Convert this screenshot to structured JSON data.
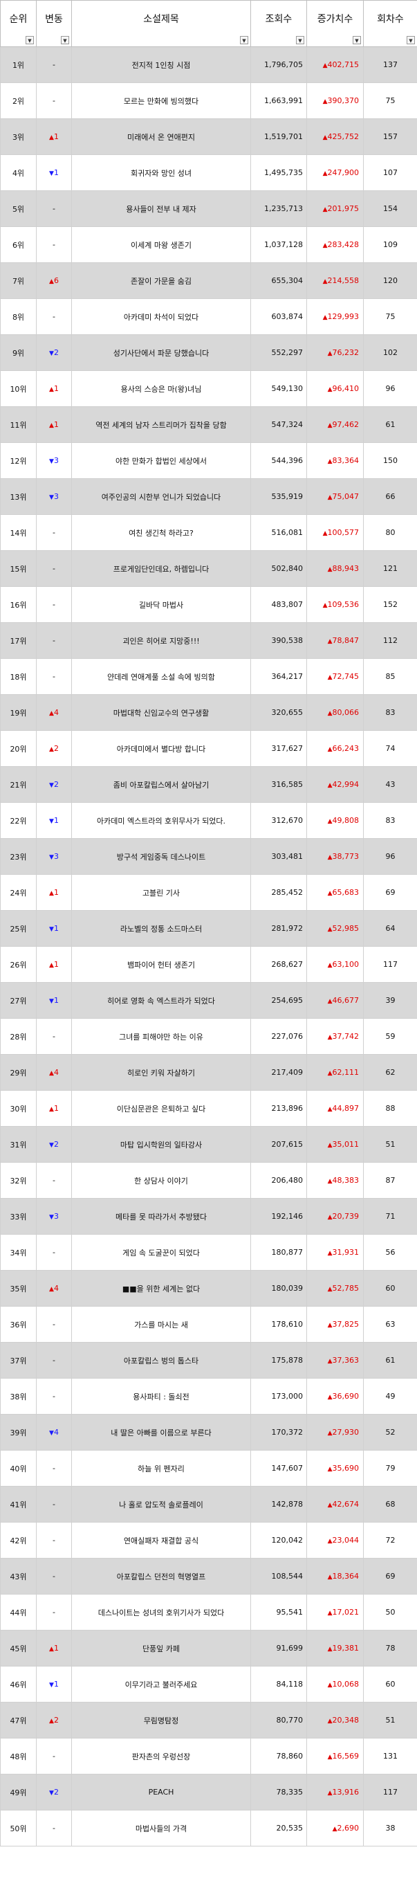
{
  "headers": {
    "rank": "순위",
    "change": "변동",
    "title": "소설제목",
    "views": "조회수",
    "increase": "증가치수",
    "episodes": "회차수",
    "filter_icon": "dropdown-filter-icon"
  },
  "colors": {
    "up": "#e00000",
    "down": "#1a1aff",
    "stripe": "#d8d8d8"
  },
  "rows": [
    {
      "rank": "1위",
      "dir": "none",
      "chg": "-",
      "title": "전지적 1인칭 시점",
      "views": "1,796,705",
      "inc": "402,715",
      "ep": "137"
    },
    {
      "rank": "2위",
      "dir": "none",
      "chg": "-",
      "title": "모르는 만화에 빙의했다",
      "views": "1,663,991",
      "inc": "390,370",
      "ep": "75"
    },
    {
      "rank": "3위",
      "dir": "up",
      "chg": "1",
      "title": "미래에서 온 연애편지",
      "views": "1,519,701",
      "inc": "425,752",
      "ep": "157"
    },
    {
      "rank": "4위",
      "dir": "down",
      "chg": "1",
      "title": "회귀자와 망인 성녀",
      "views": "1,495,735",
      "inc": "247,900",
      "ep": "107"
    },
    {
      "rank": "5위",
      "dir": "none",
      "chg": "-",
      "title": "용사들이 전부 내 제자",
      "views": "1,235,713",
      "inc": "201,975",
      "ep": "154"
    },
    {
      "rank": "6위",
      "dir": "none",
      "chg": "-",
      "title": "이세계 마왕 생존기",
      "views": "1,037,128",
      "inc": "283,428",
      "ep": "109"
    },
    {
      "rank": "7위",
      "dir": "up",
      "chg": "6",
      "title": "존잘이 가문을 숨김",
      "views": "655,304",
      "inc": "214,558",
      "ep": "120"
    },
    {
      "rank": "8위",
      "dir": "none",
      "chg": "-",
      "title": "아카데미 차석이 되었다",
      "views": "603,874",
      "inc": "129,993",
      "ep": "75"
    },
    {
      "rank": "9위",
      "dir": "down",
      "chg": "2",
      "title": "성기사단에서 파문 당했습니다",
      "views": "552,297",
      "inc": "76,232",
      "ep": "102"
    },
    {
      "rank": "10위",
      "dir": "up",
      "chg": "1",
      "title": "용사의 스승은 마(왕)녀님",
      "views": "549,130",
      "inc": "96,410",
      "ep": "96"
    },
    {
      "rank": "11위",
      "dir": "up",
      "chg": "1",
      "title": "역전 세계의 남자 스트리머가 집착을 당함",
      "views": "547,324",
      "inc": "97,462",
      "ep": "61"
    },
    {
      "rank": "12위",
      "dir": "down",
      "chg": "3",
      "title": "야한 만화가 합법인 세상에서",
      "views": "544,396",
      "inc": "83,364",
      "ep": "150"
    },
    {
      "rank": "13위",
      "dir": "down",
      "chg": "3",
      "title": "여주인공의 시한부 언니가 되었습니다",
      "views": "535,919",
      "inc": "75,047",
      "ep": "66"
    },
    {
      "rank": "14위",
      "dir": "none",
      "chg": "-",
      "title": "여친 생긴척 하라고?",
      "views": "516,081",
      "inc": "100,577",
      "ep": "80"
    },
    {
      "rank": "15위",
      "dir": "none",
      "chg": "-",
      "title": "프로게임단인데요, 하렘입니다",
      "views": "502,840",
      "inc": "88,943",
      "ep": "121"
    },
    {
      "rank": "16위",
      "dir": "none",
      "chg": "-",
      "title": "길바닥 마법사",
      "views": "483,807",
      "inc": "109,536",
      "ep": "152"
    },
    {
      "rank": "17위",
      "dir": "none",
      "chg": "-",
      "title": "괴인은 히어로 지망중!!!",
      "views": "390,538",
      "inc": "78,847",
      "ep": "112"
    },
    {
      "rank": "18위",
      "dir": "none",
      "chg": "-",
      "title": "얀데레 연애계풀 소설 속에 빙의함",
      "views": "364,217",
      "inc": "72,745",
      "ep": "85"
    },
    {
      "rank": "19위",
      "dir": "up",
      "chg": "4",
      "title": "마법대학 신임교수의 연구생활",
      "views": "320,655",
      "inc": "80,066",
      "ep": "83"
    },
    {
      "rank": "20위",
      "dir": "up",
      "chg": "2",
      "title": "아카데미에서 별다방 합니다",
      "views": "317,627",
      "inc": "66,243",
      "ep": "74"
    },
    {
      "rank": "21위",
      "dir": "down",
      "chg": "2",
      "title": "좀비 아포칼립스에서 살아남기",
      "views": "316,585",
      "inc": "42,994",
      "ep": "43"
    },
    {
      "rank": "22위",
      "dir": "down",
      "chg": "1",
      "title": "아카데미 엑스트라의 호위무사가 되었다.",
      "views": "312,670",
      "inc": "49,808",
      "ep": "83"
    },
    {
      "rank": "23위",
      "dir": "down",
      "chg": "3",
      "title": "방구석 게임중독 데스나이트",
      "views": "303,481",
      "inc": "38,773",
      "ep": "96"
    },
    {
      "rank": "24위",
      "dir": "up",
      "chg": "1",
      "title": "고블린 기사",
      "views": "285,452",
      "inc": "65,683",
      "ep": "69"
    },
    {
      "rank": "25위",
      "dir": "down",
      "chg": "1",
      "title": "라노벨의 정통 소드마스터",
      "views": "281,972",
      "inc": "52,985",
      "ep": "64"
    },
    {
      "rank": "26위",
      "dir": "up",
      "chg": "1",
      "title": "뱀파이어 헌터 생존기",
      "views": "268,627",
      "inc": "63,100",
      "ep": "117"
    },
    {
      "rank": "27위",
      "dir": "down",
      "chg": "1",
      "title": "히어로 영화 속 엑스트라가 되었다",
      "views": "254,695",
      "inc": "46,677",
      "ep": "39"
    },
    {
      "rank": "28위",
      "dir": "none",
      "chg": "-",
      "title": "그녀를 피해야만 하는 이유",
      "views": "227,076",
      "inc": "37,742",
      "ep": "59"
    },
    {
      "rank": "29위",
      "dir": "up",
      "chg": "4",
      "title": "히로인 키워 자살하기",
      "views": "217,409",
      "inc": "62,111",
      "ep": "62"
    },
    {
      "rank": "30위",
      "dir": "up",
      "chg": "1",
      "title": "이단심문관은 은퇴하고 싶다",
      "views": "213,896",
      "inc": "44,897",
      "ep": "88"
    },
    {
      "rank": "31위",
      "dir": "down",
      "chg": "2",
      "title": "마탑 입시학원의 일타강사",
      "views": "207,615",
      "inc": "35,011",
      "ep": "51"
    },
    {
      "rank": "32위",
      "dir": "none",
      "chg": "-",
      "title": "한 상담사 이야기",
      "views": "206,480",
      "inc": "48,383",
      "ep": "87"
    },
    {
      "rank": "33위",
      "dir": "down",
      "chg": "3",
      "title": "메타를 못 따라가서 추방됐다",
      "views": "192,146",
      "inc": "20,739",
      "ep": "71"
    },
    {
      "rank": "34위",
      "dir": "none",
      "chg": "-",
      "title": "게임 속 도굴꾼이 되었다",
      "views": "180,877",
      "inc": "31,931",
      "ep": "56"
    },
    {
      "rank": "35위",
      "dir": "up",
      "chg": "4",
      "title": "■■을 위한 세계는 없다",
      "views": "180,039",
      "inc": "52,785",
      "ep": "60"
    },
    {
      "rank": "36위",
      "dir": "none",
      "chg": "-",
      "title": "가스를 마시는 새",
      "views": "178,610",
      "inc": "37,825",
      "ep": "63"
    },
    {
      "rank": "37위",
      "dir": "none",
      "chg": "-",
      "title": "아포칼립스 벙의 톱스타",
      "views": "175,878",
      "inc": "37,363",
      "ep": "61"
    },
    {
      "rank": "38위",
      "dir": "none",
      "chg": "-",
      "title": "용사파티 : 돌쇠전",
      "views": "173,000",
      "inc": "36,690",
      "ep": "49"
    },
    {
      "rank": "39위",
      "dir": "down",
      "chg": "4",
      "title": "내 딸은 아빠를 이름으로 부른다",
      "views": "170,372",
      "inc": "27,930",
      "ep": "52"
    },
    {
      "rank": "40위",
      "dir": "none",
      "chg": "-",
      "title": "하늘 위 펜자리",
      "views": "147,607",
      "inc": "35,690",
      "ep": "79"
    },
    {
      "rank": "41위",
      "dir": "none",
      "chg": "-",
      "title": "나 홀로 압도적 솔로플레이",
      "views": "142,878",
      "inc": "42,674",
      "ep": "68"
    },
    {
      "rank": "42위",
      "dir": "none",
      "chg": "-",
      "title": "연애실패자 재결합 공식",
      "views": "120,042",
      "inc": "23,044",
      "ep": "72"
    },
    {
      "rank": "43위",
      "dir": "none",
      "chg": "-",
      "title": "아포칼립스 던전의 혁명열프",
      "views": "108,544",
      "inc": "18,364",
      "ep": "69"
    },
    {
      "rank": "44위",
      "dir": "none",
      "chg": "-",
      "title": "데스나이트는 성녀의 호위기사가 되었다",
      "views": "95,541",
      "inc": "17,021",
      "ep": "50"
    },
    {
      "rank": "45위",
      "dir": "up",
      "chg": "1",
      "title": "단풍잎 카페",
      "views": "91,699",
      "inc": "19,381",
      "ep": "78"
    },
    {
      "rank": "46위",
      "dir": "down",
      "chg": "1",
      "title": "이무기라고 불러주세요",
      "views": "84,118",
      "inc": "10,068",
      "ep": "60"
    },
    {
      "rank": "47위",
      "dir": "up",
      "chg": "2",
      "title": "무림명탐정",
      "views": "80,770",
      "inc": "20,348",
      "ep": "51"
    },
    {
      "rank": "48위",
      "dir": "none",
      "chg": "-",
      "title": "판자촌의 우렁선장",
      "views": "78,860",
      "inc": "16,569",
      "ep": "131"
    },
    {
      "rank": "49위",
      "dir": "down",
      "chg": "2",
      "title": "PEACH",
      "views": "78,335",
      "inc": "13,916",
      "ep": "117"
    },
    {
      "rank": "50위",
      "dir": "none",
      "chg": "-",
      "title": "마법사들의 가격",
      "views": "20,535",
      "inc": "2,690",
      "ep": "38"
    }
  ]
}
